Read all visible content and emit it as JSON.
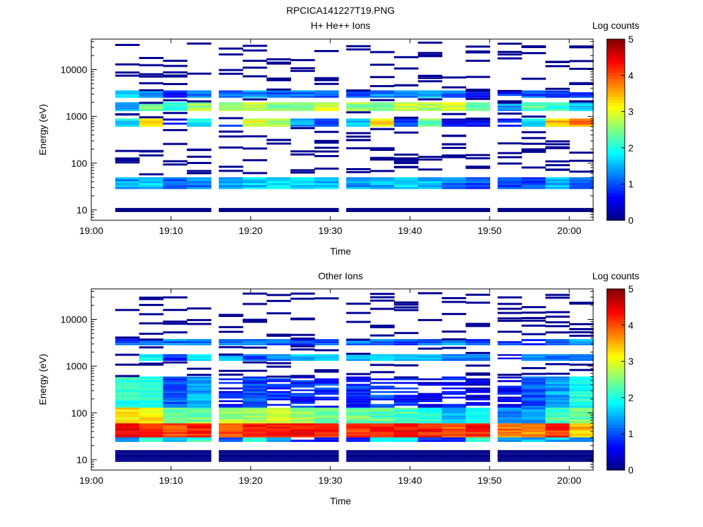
{
  "figure_title": "RPCICA141227T19.PNG",
  "chart_data": [
    {
      "type": "heatmap",
      "title": "H+ He++ Ions",
      "xlabel": "Time",
      "ylabel": "Energy (eV)",
      "colorbar_label": "Log counts",
      "x_range": [
        "19:00",
        "20:03"
      ],
      "x_ticks": [
        "19:00",
        "19:10",
        "19:20",
        "19:30",
        "19:40",
        "19:50",
        "20:00"
      ],
      "y_scale": "log",
      "y_range": [
        6,
        45000
      ],
      "y_ticks": [
        "10",
        "100",
        "1000",
        "10000"
      ],
      "colorbar_range": [
        0,
        5
      ],
      "colorbar_ticks": [
        "0",
        "1",
        "2",
        "3",
        "4",
        "5"
      ],
      "colormap": "jet",
      "time_bins": [
        "19:03",
        "19:06",
        "19:09",
        "19:12",
        "19:16",
        "19:19",
        "19:22",
        "19:25",
        "19:28",
        "19:32",
        "19:35",
        "19:38",
        "19:41",
        "19:44",
        "19:47",
        "19:51",
        "19:54",
        "19:57",
        "20:00"
      ],
      "band_levels_log_counts": [
        {
          "energy_eV": [
            28,
            50
          ],
          "values": [
            1.4,
            1.6,
            1.0,
            1.2,
            1.5,
            1.6,
            1.8,
            1.7,
            1.6,
            1.4,
            1.5,
            1.7,
            1.5,
            1.2,
            1.0,
            1.0,
            1.0,
            1.5,
            1.2
          ]
        },
        {
          "energy_eV": [
            600,
            900
          ],
          "values": [
            1.8,
            3.3,
            0.5,
            1.8,
            0.8,
            3.0,
            2.6,
            1.4,
            1.0,
            1.6,
            3.2,
            1.0,
            2.4,
            0.5,
            0.6,
            0.7,
            1.8,
            3.5,
            3.7
          ]
        },
        {
          "energy_eV": [
            1300,
            2000
          ],
          "values": [
            1.3,
            2.4,
            2.0,
            2.6,
            2.6,
            2.9,
            2.5,
            2.6,
            2.9,
            2.6,
            2.4,
            2.8,
            2.7,
            2.9,
            2.3,
            1.4,
            2.2,
            2.1,
            1.7
          ]
        },
        {
          "energy_eV": [
            2500,
            3600
          ],
          "values": [
            1.6,
            1.4,
            0.8,
            1.1,
            1.2,
            1.3,
            1.0,
            1.2,
            1.0,
            1.0,
            1.2,
            1.3,
            1.4,
            1.1,
            0.9,
            0.8,
            1.0,
            1.0,
            0.9
          ]
        },
        {
          "energy_eV": [
            9,
            11
          ],
          "values": [
            0,
            0,
            0.2,
            0,
            0,
            0,
            0,
            0,
            0,
            0.2,
            0.2,
            0.2,
            0,
            0,
            0,
            0.2,
            0,
            0,
            0
          ]
        }
      ]
    },
    {
      "type": "heatmap",
      "title": "Other Ions",
      "xlabel": "Time",
      "ylabel": "Energy (eV)",
      "colorbar_label": "Log counts",
      "x_range": [
        "19:00",
        "20:03"
      ],
      "x_ticks": [
        "19:00",
        "19:10",
        "19:20",
        "19:30",
        "19:40",
        "19:50",
        "20:00"
      ],
      "y_scale": "log",
      "y_range": [
        6,
        45000
      ],
      "y_ticks": [
        "10",
        "100",
        "1000",
        "10000"
      ],
      "colorbar_range": [
        0,
        5
      ],
      "colorbar_ticks": [
        "0",
        "1",
        "2",
        "3",
        "4",
        "5"
      ],
      "colormap": "jet",
      "time_bins": [
        "19:03",
        "19:06",
        "19:09",
        "19:12",
        "19:16",
        "19:19",
        "19:22",
        "19:25",
        "19:28",
        "19:32",
        "19:35",
        "19:38",
        "19:41",
        "19:44",
        "19:47",
        "19:51",
        "19:54",
        "19:57",
        "20:00"
      ],
      "band_levels_log_counts": [
        {
          "energy_eV": [
            24,
            30
          ],
          "values": [
            1.5,
            2.0,
            1.3,
            2.0,
            1.0,
            2.0,
            1.5,
            0.5,
            0.5,
            0.5,
            2.0,
            2.0,
            1.0,
            1.0,
            2.0,
            1.5,
            1.5,
            1.5,
            1.5
          ]
        },
        {
          "energy_eV": [
            30,
            60
          ],
          "values": [
            4.4,
            4.3,
            4.0,
            4.2,
            4.0,
            4.3,
            4.3,
            4.3,
            4.3,
            4.2,
            4.3,
            4.4,
            4.3,
            4.0,
            4.2,
            3.8,
            3.6,
            4.2,
            3.5
          ]
        },
        {
          "energy_eV": [
            60,
            130
          ],
          "values": [
            3.2,
            3.3,
            2.3,
            2.5,
            2.7,
            2.6,
            3.0,
            2.7,
            2.5,
            2.4,
            2.3,
            2.2,
            2.0,
            1.5,
            1.8,
            1.2,
            1.3,
            2.2,
            2.4
          ]
        },
        {
          "energy_eV": [
            130,
            600
          ],
          "values": [
            2.0,
            2.1,
            1.0,
            1.5,
            0.6,
            1.0,
            0.8,
            0.8,
            0.9,
            0.8,
            0.9,
            0.8,
            0.6,
            0.7,
            0.5,
            0.6,
            1.0,
            1.4,
            2.0
          ]
        },
        {
          "energy_eV": [
            1300,
            1800
          ],
          "values": [
            0.6,
            1.8,
            0.8,
            1.6,
            1.4,
            1.0,
            1.2,
            1.6,
            1.8,
            1.4,
            1.8,
            1.6,
            1.5,
            1.3,
            1.2,
            0.7,
            1.4,
            1.2,
            1.0
          ]
        },
        {
          "energy_eV": [
            2800,
            3800
          ],
          "values": [
            1.0,
            1.0,
            1.2,
            1.2,
            1.3,
            1.1,
            1.1,
            1.0,
            1.1,
            1.2,
            1.3,
            1.0,
            1.1,
            1.3,
            1.0,
            0.9,
            0.9,
            1.2,
            1.5
          ]
        },
        {
          "energy_eV": [
            9,
            16
          ],
          "values": [
            0.2,
            0.2,
            0,
            0.2,
            0,
            0,
            0,
            0,
            0,
            0,
            0,
            0.2,
            0,
            0,
            0,
            0,
            0,
            0,
            0
          ]
        }
      ]
    }
  ]
}
